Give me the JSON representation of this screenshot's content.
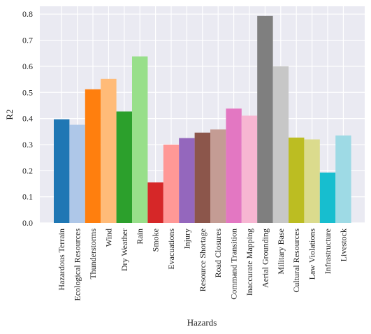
{
  "chart_data": {
    "type": "bar",
    "title": "",
    "xlabel": "Hazards",
    "ylabel": "R2",
    "ylim": [
      0,
      0.83
    ],
    "yticks": [
      0.0,
      0.1,
      0.2,
      0.3,
      0.4,
      0.5,
      0.6,
      0.7,
      0.8
    ],
    "ytick_labels": [
      "0.0",
      "0.1",
      "0.2",
      "0.3",
      "0.4",
      "0.5",
      "0.6",
      "0.7",
      "0.8"
    ],
    "grid": true,
    "background": "#EAEAF2",
    "categories": [
      "Hazardous Terrain",
      "Ecological Resources",
      "Thunderstorms",
      "Wind",
      "Dry Weather",
      "Rain",
      "Smoke",
      "Evacuations",
      "Injury",
      "Resource Shortage",
      "Road Closures",
      "Command Transition",
      "Inaccurate Mapping",
      "Aerial Grounding",
      "Military Base",
      "Cultural Resources",
      "Law Violations",
      "Infrastructure",
      "Livestock"
    ],
    "values": [
      0.397,
      0.376,
      0.512,
      0.552,
      0.427,
      0.638,
      0.155,
      0.3,
      0.325,
      0.346,
      0.358,
      0.438,
      0.411,
      0.793,
      0.6,
      0.327,
      0.32,
      0.193,
      0.335
    ],
    "colors": [
      "#1f77b4",
      "#aec7e8",
      "#ff7f0e",
      "#ffbb78",
      "#2ca02c",
      "#98df8a",
      "#d62728",
      "#ff9896",
      "#9467bd",
      "#8c564b",
      "#c49c94",
      "#e377c2",
      "#f7b6d2",
      "#7f7f7f",
      "#c7c7c7",
      "#bcbd22",
      "#dbdb8d",
      "#17becf",
      "#9edae5"
    ]
  }
}
